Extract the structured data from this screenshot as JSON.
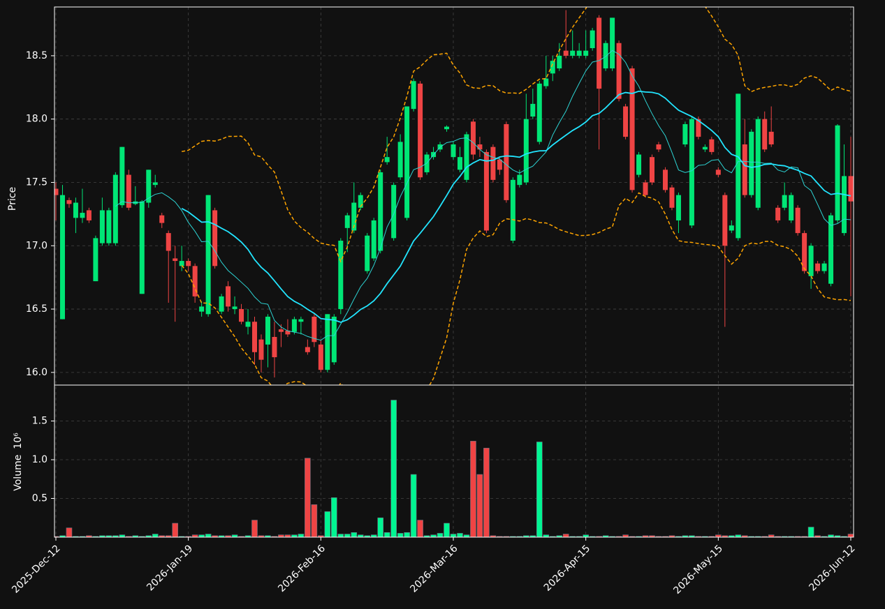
{
  "chart_data": {
    "type": "candlestick",
    "categories": [
      "2025-Dec-12",
      null,
      null,
      null,
      null,
      null,
      null,
      null,
      null,
      null,
      null,
      null,
      null,
      null,
      null,
      null,
      null,
      null,
      null,
      null,
      "2026-Jan-19",
      null,
      null,
      null,
      null,
      null,
      null,
      null,
      null,
      null,
      null,
      null,
      null,
      null,
      null,
      null,
      null,
      null,
      null,
      null,
      "2026-Feb-16",
      null,
      null,
      null,
      null,
      null,
      null,
      null,
      null,
      null,
      null,
      null,
      null,
      null,
      null,
      null,
      null,
      null,
      null,
      null,
      "2026-Mar-16",
      null,
      null,
      null,
      null,
      null,
      null,
      null,
      null,
      null,
      null,
      null,
      null,
      null,
      null,
      null,
      null,
      null,
      null,
      null,
      "2026-Apr-15",
      null,
      null,
      null,
      null,
      null,
      null,
      null,
      null,
      null,
      null,
      null,
      null,
      null,
      null,
      null,
      null,
      null,
      null,
      null,
      "2026-May-15",
      null,
      null,
      null,
      null,
      null,
      null,
      null,
      null,
      null,
      null,
      null,
      null,
      null,
      null,
      null,
      null,
      null,
      null,
      null,
      "2026-Jun-12"
    ],
    "open": [
      17.45,
      16.42,
      17.36,
      17.22,
      17.22,
      17.28,
      16.72,
      17.02,
      17.02,
      17.02,
      17.32,
      17.56,
      17.33,
      16.62,
      17.34,
      17.48,
      17.24,
      17.1,
      16.9,
      16.84,
      16.88,
      16.84,
      16.48,
      16.46,
      17.28,
      16.48,
      16.68,
      16.5,
      16.5,
      16.36,
      16.4,
      16.26,
      16.22,
      16.28,
      16.34,
      16.33,
      16.32,
      16.4,
      16.2,
      16.44,
      16.22,
      16.02,
      16.08,
      16.5,
      17.14,
      17.12,
      17.3,
      16.8,
      16.9,
      16.96,
      17.66,
      17.06,
      17.54,
      17.22,
      18.08,
      18.28,
      17.58,
      17.7,
      17.76,
      17.92,
      17.7,
      17.6,
      17.52,
      17.98,
      17.8,
      17.74,
      17.78,
      17.68,
      17.96,
      17.04,
      17.48,
      17.5,
      18.02,
      17.82,
      18.26,
      18.36,
      18.4,
      18.54,
      18.5,
      18.5,
      18.5,
      18.56,
      18.8,
      18.4,
      18.4,
      18.6,
      18.1,
      18.4,
      17.56,
      17.5,
      17.7,
      17.8,
      17.6,
      17.46,
      17.2,
      17.8,
      17.16,
      18.0,
      17.76,
      17.84,
      17.6,
      17.4,
      17.12,
      17.06,
      17.8,
      17.4,
      17.3,
      18.0,
      17.9,
      17.3,
      17.3,
      17.2,
      17.3,
      17.1,
      16.76,
      16.86,
      16.8,
      16.7,
      17.2,
      17.1,
      17.55
    ],
    "high": [
      17.5,
      17.48,
      17.38,
      17.38,
      17.45,
      17.3,
      17.08,
      17.38,
      17.3,
      17.58,
      17.78,
      17.6,
      17.47,
      17.36,
      17.6,
      17.56,
      17.26,
      17.12,
      17.0,
      17.0,
      16.9,
      16.86,
      16.56,
      17.4,
      17.3,
      16.62,
      16.72,
      16.6,
      16.54,
      16.5,
      16.44,
      16.3,
      16.46,
      16.4,
      16.38,
      16.42,
      16.44,
      16.44,
      16.26,
      16.46,
      16.26,
      16.46,
      16.46,
      17.06,
      17.26,
      17.5,
      17.42,
      17.1,
      17.22,
      17.6,
      17.86,
      17.5,
      17.88,
      18.1,
      18.32,
      18.3,
      17.74,
      17.78,
      17.82,
      17.95,
      17.82,
      17.78,
      17.9,
      18.0,
      17.86,
      17.76,
      17.8,
      17.7,
      17.98,
      17.54,
      17.6,
      18.2,
      18.24,
      18.3,
      18.5,
      18.5,
      18.6,
      18.86,
      18.7,
      18.6,
      18.7,
      18.72,
      18.82,
      18.62,
      18.8,
      18.62,
      18.12,
      18.42,
      17.74,
      17.52,
      17.72,
      17.82,
      17.62,
      17.48,
      17.42,
      17.98,
      18.02,
      18.02,
      17.8,
      17.86,
      17.62,
      17.42,
      17.2,
      18.2,
      18.0,
      17.92,
      18.02,
      18.06,
      18.1,
      17.32,
      17.5,
      17.42,
      17.32,
      17.12,
      17.02,
      16.88,
      16.88,
      17.26,
      17.96,
      17.8,
      17.86
    ],
    "low": [
      17.2,
      16.42,
      17.3,
      17.1,
      17.18,
      17.18,
      16.72,
      17.0,
      17.0,
      17.0,
      17.3,
      17.28,
      17.32,
      16.62,
      17.3,
      17.46,
      17.14,
      16.55,
      16.4,
      16.8,
      16.8,
      16.55,
      16.44,
      16.44,
      16.82,
      16.46,
      16.48,
      16.46,
      16.38,
      16.3,
      16.06,
      16.0,
      16.04,
      15.96,
      16.2,
      16.28,
      16.3,
      16.3,
      16.14,
      16.2,
      16.0,
      16.0,
      16.06,
      16.46,
      16.95,
      17.1,
      17.28,
      16.78,
      16.88,
      16.94,
      17.64,
      17.04,
      17.52,
      17.2,
      18.06,
      17.52,
      17.56,
      17.68,
      17.74,
      17.9,
      17.68,
      17.58,
      17.5,
      17.68,
      17.7,
      17.1,
      17.5,
      17.56,
      17.34,
      17.02,
      17.46,
      17.48,
      18.0,
      17.8,
      18.24,
      18.3,
      18.38,
      18.48,
      18.48,
      18.48,
      18.48,
      18.54,
      17.76,
      18.38,
      18.38,
      18.14,
      17.84,
      17.42,
      17.54,
      17.38,
      17.48,
      17.74,
      17.42,
      17.28,
      17.1,
      17.78,
      17.14,
      17.84,
      17.74,
      17.72,
      17.54,
      16.36,
      17.1,
      17.04,
      17.38,
      17.38,
      17.28,
      17.74,
      17.78,
      17.18,
      17.28,
      17.18,
      17.08,
      16.78,
      16.66,
      16.78,
      16.78,
      16.68,
      17.18,
      17.08,
      16.6
    ],
    "close": [
      17.4,
      17.4,
      17.33,
      17.34,
      17.26,
      17.2,
      17.06,
      17.28,
      17.28,
      17.56,
      17.78,
      17.3,
      17.35,
      17.35,
      17.6,
      17.5,
      17.18,
      16.96,
      16.88,
      16.88,
      16.84,
      16.6,
      16.52,
      17.4,
      16.84,
      16.6,
      16.52,
      16.52,
      16.4,
      16.4,
      16.16,
      16.1,
      16.44,
      16.12,
      16.32,
      16.3,
      16.42,
      16.42,
      16.16,
      16.24,
      16.02,
      16.46,
      16.44,
      17.04,
      17.24,
      17.34,
      17.4,
      17.08,
      17.2,
      17.58,
      17.7,
      17.48,
      17.82,
      18.1,
      18.3,
      17.54,
      17.72,
      17.74,
      17.8,
      17.94,
      17.8,
      17.7,
      17.88,
      17.72,
      17.76,
      17.12,
      17.52,
      17.6,
      17.36,
      17.52,
      17.56,
      18.0,
      18.12,
      18.28,
      18.32,
      18.46,
      18.5,
      18.5,
      18.54,
      18.54,
      18.54,
      18.7,
      18.24,
      18.6,
      18.8,
      18.16,
      17.86,
      17.44,
      17.72,
      17.4,
      17.5,
      17.76,
      17.44,
      17.3,
      17.4,
      17.96,
      18.0,
      17.86,
      17.78,
      17.74,
      17.56,
      17.0,
      17.16,
      18.2,
      17.4,
      17.9,
      18.0,
      17.76,
      17.8,
      17.2,
      17.4,
      17.4,
      17.1,
      16.8,
      17.0,
      16.8,
      16.86,
      17.24,
      17.95,
      17.55,
      17.35
    ],
    "volume": [
      0.01,
      0.02,
      0.12,
      0.01,
      0.01,
      0.02,
      0.01,
      0.02,
      0.02,
      0.02,
      0.03,
      0.01,
      0.02,
      0.01,
      0.02,
      0.04,
      0.02,
      0.02,
      0.18,
      0.01,
      0.01,
      0.03,
      0.03,
      0.04,
      0.02,
      0.02,
      0.02,
      0.03,
      0.01,
      0.02,
      0.22,
      0.02,
      0.02,
      0.01,
      0.03,
      0.03,
      0.03,
      0.04,
      1.02,
      0.42,
      0.02,
      0.33,
      0.51,
      0.04,
      0.04,
      0.06,
      0.03,
      0.02,
      0.03,
      0.25,
      0.06,
      1.77,
      0.05,
      0.06,
      0.81,
      0.22,
      0.02,
      0.03,
      0.05,
      0.18,
      0.04,
      0.05,
      0.03,
      1.24,
      0.81,
      1.15,
      0.02,
      0.01,
      0.01,
      0.01,
      0.01,
      0.02,
      0.02,
      1.23,
      0.03,
      0.01,
      0.02,
      0.04,
      0.01,
      0.01,
      0.03,
      0.01,
      0.01,
      0.02,
      0.01,
      0.01,
      0.03,
      0.01,
      0.01,
      0.02,
      0.02,
      0.01,
      0.01,
      0.02,
      0.01,
      0.02,
      0.02,
      0.01,
      0.01,
      0.01,
      0.03,
      0.02,
      0.02,
      0.03,
      0.02,
      0.01,
      0.01,
      0.01,
      0.03,
      0.01,
      0.01,
      0.01,
      0.01,
      0.01,
      0.13,
      0.02,
      0.01,
      0.03,
      0.02,
      0.01,
      0.04
    ],
    "up_color": "#00e676",
    "down_color": "#ef4444",
    "volume_up_color": "#00f592",
    "ylabel": "Price",
    "ylim": [
      15.9,
      18.885
    ],
    "yticks": [
      {
        "value": 16,
        "label": "16.0"
      },
      16.5,
      {
        "value": 17,
        "label": "17.0"
      },
      17.5,
      {
        "value": 18,
        "label": "18.0"
      },
      18.5
    ],
    "volume_ylabel": "Volume",
    "volume_scale": "10⁶",
    "volume_ylim": [
      0,
      1.964
    ],
    "volume_yticks": [
      0.5,
      {
        "value": 1,
        "label": "1.0"
      },
      1.5
    ],
    "moving_averages": [
      {
        "period": 10,
        "color": "#2dd4d4",
        "width": 1
      },
      {
        "period": 20,
        "color": "#22e5ff",
        "width": 1.8
      }
    ],
    "bollinger": {
      "period": 20,
      "std": 2,
      "color": "#ffa500"
    },
    "grid": true
  }
}
